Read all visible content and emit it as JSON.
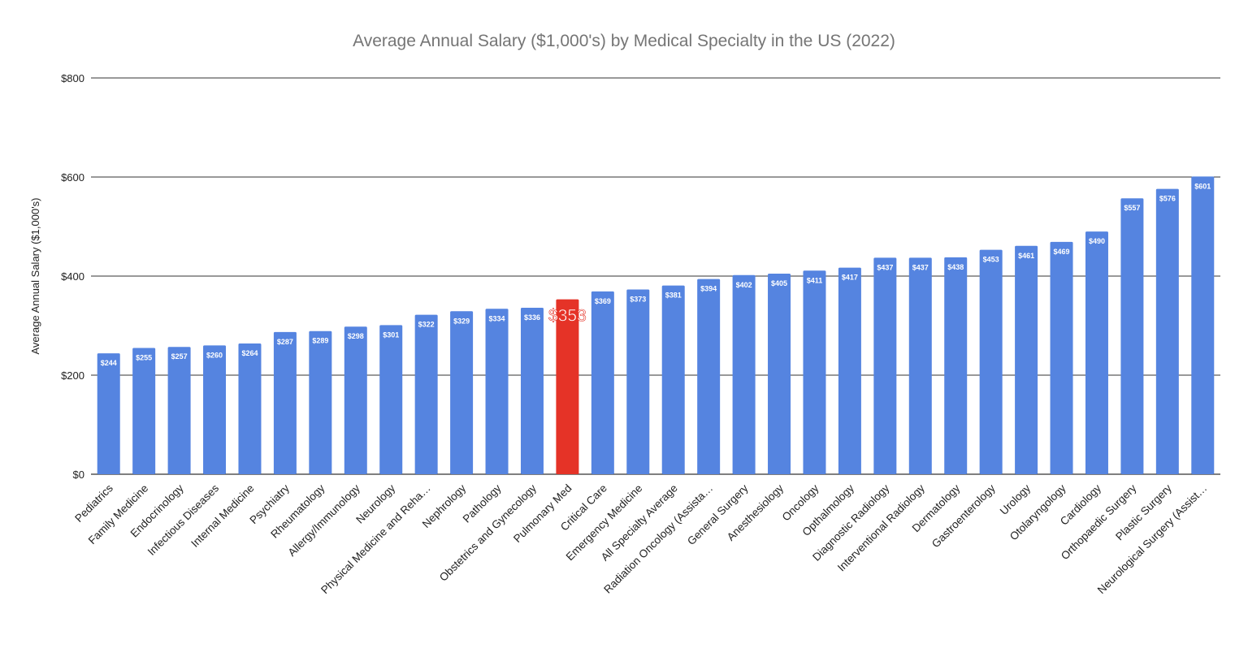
{
  "chart_data": {
    "type": "bar",
    "title": "Average Annual Salary ($1,000's) by Medical Specialty in the US (2022)",
    "xlabel": "",
    "ylabel": "Average Annual Salary ($1,000's)",
    "ylim": [
      0,
      800
    ],
    "yticks": [
      0,
      200,
      400,
      600,
      800
    ],
    "ytick_labels": [
      "$0",
      "$200",
      "$400",
      "$600",
      "$800"
    ],
    "grid": true,
    "legend": "none",
    "categories": [
      "Pediatrics",
      "Family Medicine",
      "Endocrinology",
      "Infectious Diseases",
      "Internal Medicine",
      "Psychiatry",
      "Rheumatology",
      "Allergy/Immunology",
      "Neurology",
      "Physical Medicine and Reha…",
      "Nephrology",
      "Pathology",
      "Obstetrics and Gynecology",
      "Pulmonary Med",
      "Critical Care",
      "Emergency Medicine",
      "All Specialty Average",
      "Radiation Oncology (Assista…",
      "General Surgery",
      "Anesthesiology",
      "Oncology",
      "Opthalmology",
      "Diagnostic Radiology",
      "Interventional Radiology",
      "Dermatology",
      "Gastroenterology",
      "Urology",
      "Otolaryngology",
      "Cardiology",
      "Orthopaedic Surgery",
      "Plastic Surgery",
      "Neurological Surgery (Assist…"
    ],
    "values": [
      244,
      255,
      257,
      260,
      264,
      287,
      289,
      298,
      301,
      322,
      329,
      334,
      336,
      353,
      369,
      373,
      381,
      394,
      402,
      405,
      411,
      417,
      437,
      437,
      438,
      453,
      461,
      469,
      490,
      557,
      576,
      601
    ],
    "data_labels": [
      "$244",
      "$255",
      "$257",
      "$260",
      "$264",
      "$287",
      "$289",
      "$298",
      "$301",
      "$322",
      "$329",
      "$334",
      "$336",
      "$353",
      "$369",
      "$373",
      "$381",
      "$394",
      "$402",
      "$405",
      "$411",
      "$417",
      "$437",
      "$437",
      "$438",
      "$453",
      "$461",
      "$469",
      "$490",
      "$557",
      "$576",
      "$601"
    ],
    "highlight_index": 13,
    "colors": {
      "bar": "#5584e0",
      "highlight": "#e53327"
    }
  }
}
